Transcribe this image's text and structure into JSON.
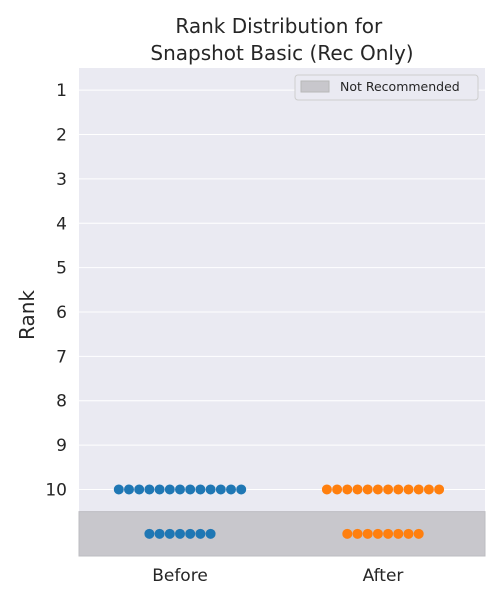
{
  "chart_data": {
    "type": "scatter",
    "style": "swarm",
    "title": "Rank Distribution for\nSnapshot Basic (Rec Only)",
    "xlabel": "",
    "ylabel": "Rank",
    "categories": [
      "Before",
      "After"
    ],
    "y_ticks": [
      1,
      2,
      3,
      4,
      5,
      6,
      7,
      8,
      9,
      10
    ],
    "ylim": [
      0.5,
      11.5
    ],
    "y_inverted": true,
    "grid": true,
    "legend": {
      "position": "top-right",
      "entries": [
        "Not Recommended"
      ]
    },
    "not_recommended_region": {
      "from_rank": 10.5,
      "to_rank": 11.5,
      "color": "#c8c7cc"
    },
    "series": [
      {
        "category": "Before",
        "color": "#1f77b4",
        "groups": [
          {
            "rank": 10,
            "count": 13,
            "recommended": true
          },
          {
            "rank": 11,
            "count": 7,
            "recommended": false
          }
        ]
      },
      {
        "category": "After",
        "color": "#ff7f0e",
        "groups": [
          {
            "rank": 10,
            "count": 12,
            "recommended": true
          },
          {
            "rank": 11,
            "count": 8,
            "recommended": false
          }
        ]
      }
    ],
    "colors": {
      "plot_bg": "#eaeaf2",
      "grid": "#ffffff",
      "legend_patch": "#c8c7cc"
    }
  }
}
